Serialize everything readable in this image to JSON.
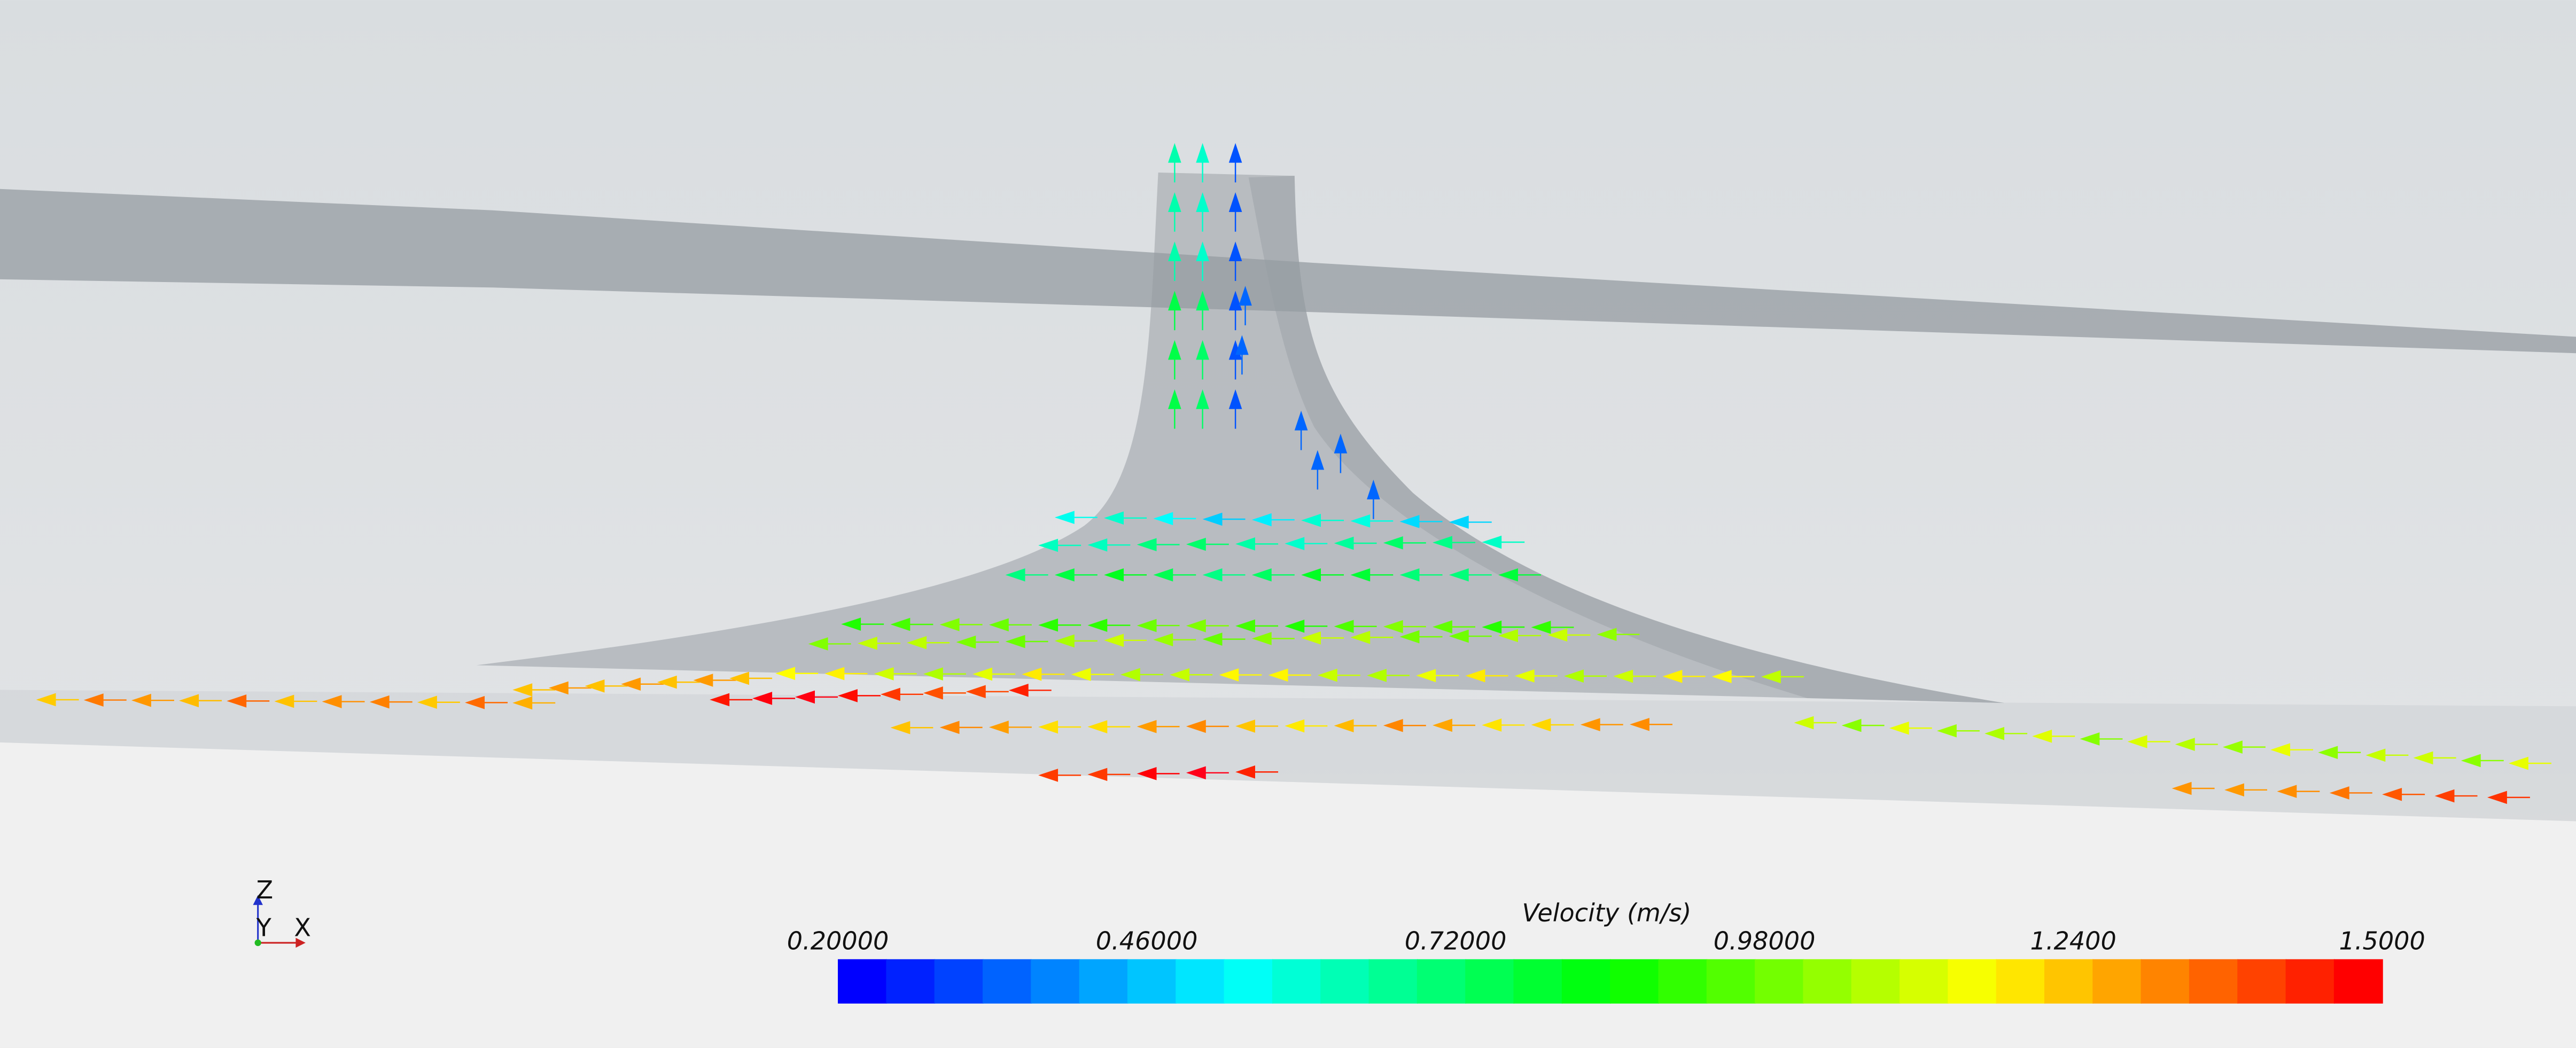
{
  "legend": {
    "title": "Velocity (m/s)",
    "ticks": [
      "0.20000",
      "0.46000",
      "0.72000",
      "0.98000",
      "1.2400",
      "1.5000"
    ]
  },
  "axes_triad": {
    "z": "Z",
    "y": "Y",
    "x": "X"
  }
}
